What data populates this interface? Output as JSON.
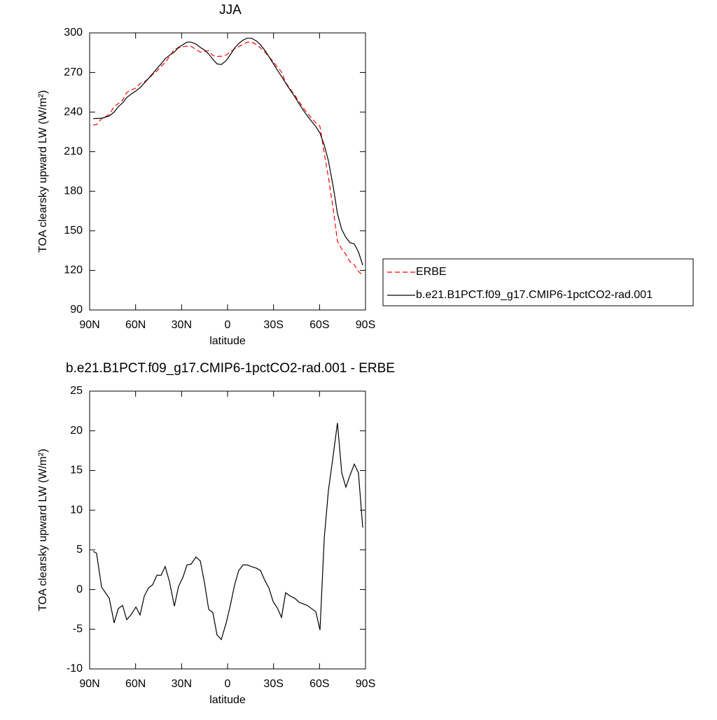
{
  "chart_data": [
    {
      "type": "line",
      "title": "JJA",
      "xlabel": "latitude",
      "ylabel": "TOA clearsky upward LW (W/m²)",
      "x": [
        87.7,
        85.5,
        82.2,
        77.2,
        74.0,
        71.3,
        68.5,
        65.8,
        63.1,
        59.8,
        57.1,
        54.3,
        51.6,
        48.9,
        46.1,
        43.4,
        40.7,
        37.9,
        34.7,
        32.0,
        29.2,
        26.5,
        23.8,
        20.6,
        17.8,
        15.1,
        12.3,
        9.6,
        6.9,
        4.1,
        0.9,
        -1.8,
        -4.6,
        -7.3,
        -10.1,
        -12.8,
        -15.5,
        -18.7,
        -21.5,
        -24.2,
        -27.0,
        -29.7,
        -32.4,
        -35.2,
        -37.9,
        -40.7,
        -43.9,
        -46.6,
        -49.3,
        -52.1,
        -54.8,
        -57.6,
        -60.3,
        -63.1,
        -65.8,
        -69.0,
        -71.7,
        -74.5,
        -77.2,
        -79.9,
        -82.7,
        -85.4,
        -88.2
      ],
      "series": [
        {
          "name": "ERBE",
          "color": "#ff0000",
          "linestyle": "dashed",
          "values": [
            230.2,
            230.5,
            235.0,
            238.1,
            244.2,
            246.4,
            249.0,
            254.8,
            256.7,
            258.2,
            261.7,
            262.8,
            265.3,
            268.4,
            271.2,
            274.7,
            277.6,
            282.0,
            287.6,
            288.6,
            289.5,
            289.9,
            289.8,
            287.4,
            285.4,
            286.1,
            286.5,
            282.9,
            282.2,
            282.3,
            283.2,
            285.5,
            287.9,
            289.6,
            291.4,
            292.9,
            293.1,
            291.3,
            288.6,
            285.8,
            281.8,
            278.5,
            274.3,
            270.5,
            262.4,
            257.8,
            252.6,
            248.1,
            243.3,
            239.0,
            235.4,
            231.8,
            229.1,
            208.5,
            190.5,
            166.0,
            142.0,
            136.3,
            132.1,
            126.6,
            124.2,
            119.3,
            116.2
          ]
        },
        {
          "name": "b.e21.B1PCT.f09_g17.CMIP6-1pctCO2-rad.001",
          "color": "#000000",
          "linestyle": "solid",
          "values": [
            235.0,
            235.1,
            235.3,
            237.0,
            240.0,
            244.0,
            247.0,
            251.0,
            253.5,
            256.0,
            258.5,
            262.0,
            265.5,
            269.0,
            273.0,
            276.5,
            280.5,
            283.0,
            285.5,
            289.0,
            291.0,
            293.0,
            293.0,
            291.5,
            289.0,
            287.0,
            284.0,
            280.0,
            276.5,
            276.0,
            279.0,
            283.5,
            288.5,
            292.0,
            294.5,
            296.0,
            296.0,
            294.0,
            291.0,
            287.0,
            282.0,
            277.0,
            272.0,
            267.0,
            262.0,
            257.0,
            251.5,
            246.5,
            241.5,
            237.0,
            233.0,
            229.0,
            224.0,
            215.0,
            203.0,
            183.0,
            163.0,
            151.0,
            145.0,
            141.0,
            140.0,
            134.0,
            124.0
          ]
        }
      ],
      "xlim": [
        90,
        -90
      ],
      "xticks": [
        {
          "value": 90,
          "label": "90N"
        },
        {
          "value": 60,
          "label": "60N"
        },
        {
          "value": 30,
          "label": "30N"
        },
        0,
        {
          "value": -30,
          "label": "30S"
        },
        {
          "value": -60,
          "label": "60S"
        },
        {
          "value": -90,
          "label": "90S"
        }
      ],
      "ylim": [
        90,
        300
      ],
      "yticks": [
        90,
        120,
        150,
        180,
        210,
        240,
        270,
        300
      ],
      "legend": "right"
    },
    {
      "type": "line",
      "title": "b.e21.B1PCT.f09_g17.CMIP6-1pctCO2-rad.001 - ERBE",
      "xlabel": "latitude",
      "ylabel": "TOA clearsky upward LW (W/m²)",
      "x": [
        87.7,
        85.5,
        82.2,
        77.2,
        74.0,
        71.3,
        68.5,
        65.8,
        63.1,
        59.8,
        57.1,
        54.3,
        51.6,
        48.9,
        46.1,
        43.4,
        40.7,
        37.9,
        34.7,
        32.0,
        29.2,
        26.5,
        23.8,
        20.6,
        17.8,
        15.1,
        12.3,
        9.6,
        6.9,
        4.1,
        0.9,
        -1.8,
        -4.6,
        -7.3,
        -10.1,
        -12.8,
        -15.5,
        -18.7,
        -21.5,
        -24.2,
        -27.0,
        -29.7,
        -32.4,
        -35.2,
        -37.9,
        -40.7,
        -43.9,
        -46.6,
        -49.3,
        -52.1,
        -54.8,
        -57.6,
        -60.3,
        -63.1,
        -65.8,
        -69.0,
        -71.7,
        -74.5,
        -77.2,
        -79.9,
        -82.7,
        -85.4,
        -88.2
      ],
      "series": [
        {
          "color": "#000000",
          "linestyle": "solid",
          "values": [
            4.8,
            4.6,
            0.3,
            -1.1,
            -4.2,
            -2.4,
            -2.0,
            -3.8,
            -3.2,
            -2.2,
            -3.2,
            -0.8,
            0.2,
            0.6,
            1.8,
            1.8,
            2.9,
            1.0,
            -2.1,
            0.4,
            1.5,
            3.1,
            3.2,
            4.1,
            3.6,
            0.9,
            -2.5,
            -2.9,
            -5.7,
            -6.3,
            -4.2,
            -2.0,
            0.6,
            2.4,
            3.1,
            3.1,
            2.9,
            2.7,
            2.4,
            1.2,
            0.2,
            -1.5,
            -2.3,
            -3.5,
            -0.4,
            -0.8,
            -1.1,
            -1.6,
            -1.8,
            -2.0,
            -2.4,
            -2.8,
            -5.1,
            6.5,
            12.5,
            17.0,
            21.0,
            14.7,
            12.9,
            14.4,
            15.8,
            14.7,
            7.8
          ]
        }
      ],
      "xlim": [
        90,
        -90
      ],
      "xticks": [
        {
          "value": 90,
          "label": "90N"
        },
        {
          "value": 60,
          "label": "60N"
        },
        {
          "value": 30,
          "label": "30N"
        },
        0,
        {
          "value": -30,
          "label": "30S"
        },
        {
          "value": -60,
          "label": "60S"
        },
        {
          "value": -90,
          "label": "90S"
        }
      ],
      "ylim": [
        -10,
        25
      ],
      "yticks": [
        -10,
        -5,
        0,
        5,
        10,
        15,
        20,
        25
      ]
    }
  ]
}
